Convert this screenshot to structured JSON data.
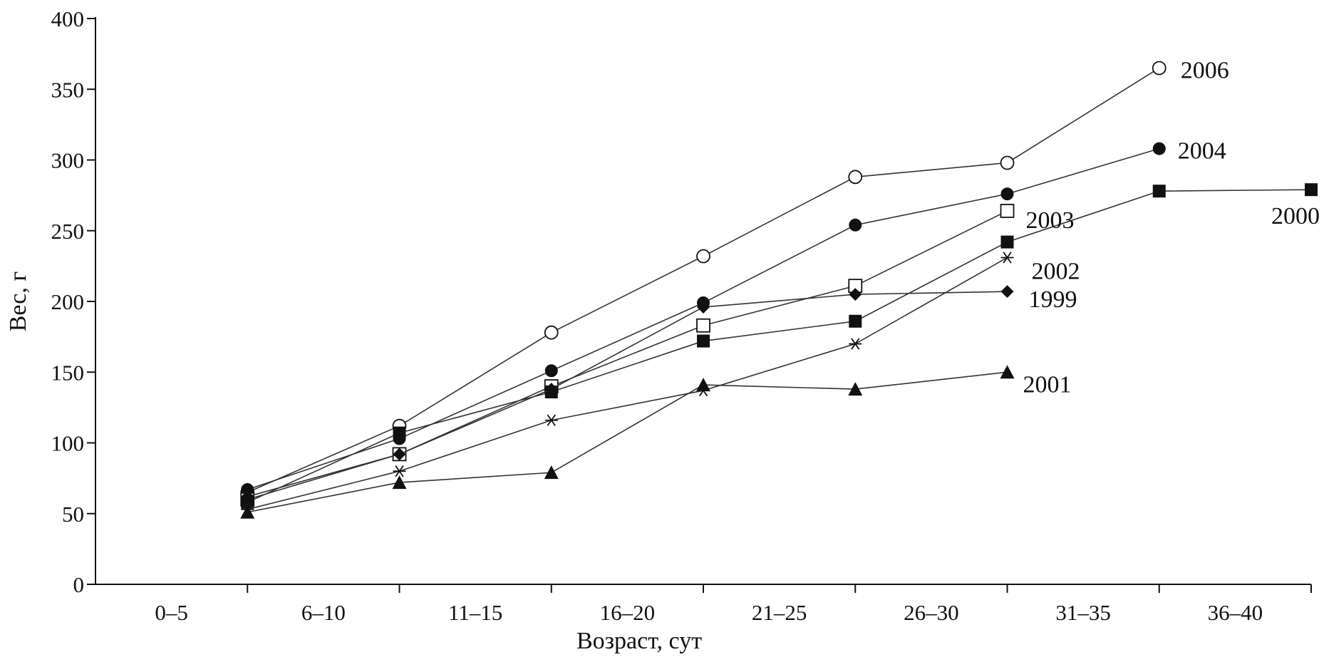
{
  "chart_data": {
    "type": "line",
    "title": "",
    "xlabel": "Возраст, сут",
    "ylabel": "Вес, г",
    "categories": [
      "0–5",
      "6–10",
      "11–15",
      "16–20",
      "21–25",
      "26–30",
      "31–35",
      "36–40"
    ],
    "point_positions": [
      "5",
      "10",
      "15",
      "20",
      "25",
      "30",
      "35",
      "40"
    ],
    "ylim": [
      0,
      400
    ],
    "yticks": [
      0,
      50,
      100,
      150,
      200,
      250,
      300,
      350,
      400
    ],
    "grid": false,
    "legend": "inline labels at line ends",
    "series": [
      {
        "name": "2006",
        "marker": "circle-open",
        "values": [
          65,
          112,
          178,
          232,
          288,
          298,
          365,
          null
        ]
      },
      {
        "name": "2004",
        "marker": "circle-filled",
        "values": [
          67,
          103,
          151,
          199,
          254,
          276,
          308,
          null
        ]
      },
      {
        "name": "2003",
        "marker": "square-open",
        "values": [
          60,
          92,
          140,
          183,
          211,
          264,
          null,
          null
        ]
      },
      {
        "name": "2000",
        "marker": "square-filled",
        "values": [
          58,
          107,
          136,
          172,
          186,
          242,
          278,
          279
        ]
      },
      {
        "name": "2002",
        "marker": "asterisk",
        "values": [
          53,
          80,
          116,
          137,
          170,
          231,
          null,
          null
        ]
      },
      {
        "name": "1999",
        "marker": "diamond-filled",
        "values": [
          62,
          92,
          138,
          196,
          205,
          207,
          null,
          null
        ]
      },
      {
        "name": "2001",
        "marker": "triangle-filled",
        "values": [
          51,
          72,
          79,
          141,
          138,
          150,
          null,
          null
        ]
      }
    ]
  }
}
